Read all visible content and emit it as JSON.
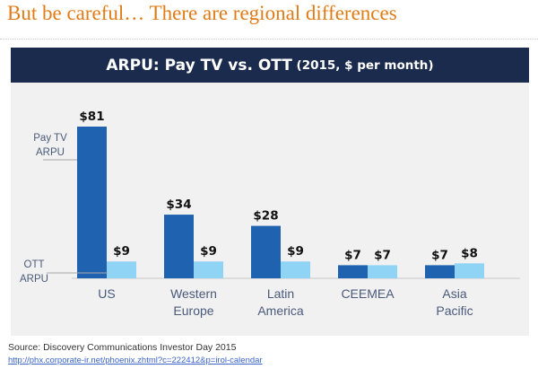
{
  "slide": {
    "title": "But be careful… There are regional differences"
  },
  "chart_data": {
    "type": "bar",
    "title_main": "ARPU: Pay TV vs. OTT",
    "title_sub": " (2015, $ per month)",
    "categories": [
      [
        "US"
      ],
      [
        "Western",
        "Europe"
      ],
      [
        "Latin",
        "America"
      ],
      [
        "CEEMEA"
      ],
      [
        "Asia",
        "Pacific"
      ]
    ],
    "series": [
      {
        "name": "Pay TV ARPU",
        "label_lines": [
          "Pay TV",
          "ARPU"
        ],
        "values": [
          81,
          34,
          28,
          7,
          7
        ],
        "color": "#1f63b0"
      },
      {
        "name": "OTT ARPU",
        "label_lines": [
          "OTT",
          "ARPU"
        ],
        "values": [
          9,
          9,
          9,
          7,
          8
        ],
        "color": "#8fd4f5"
      }
    ],
    "value_prefix": "$",
    "ylim": [
      0,
      90
    ],
    "grid": false,
    "legend": "left-side labels"
  },
  "footer": {
    "source": "Source: Discovery Communications Investor Day 2015",
    "link": "http://phx.corporate-ir.net/phoenix.zhtml?c=222412&p=irol-calendar"
  },
  "colors": {
    "title": "#e07b16",
    "banner": "#1b2b4d",
    "panel": "#f1f1f1"
  }
}
